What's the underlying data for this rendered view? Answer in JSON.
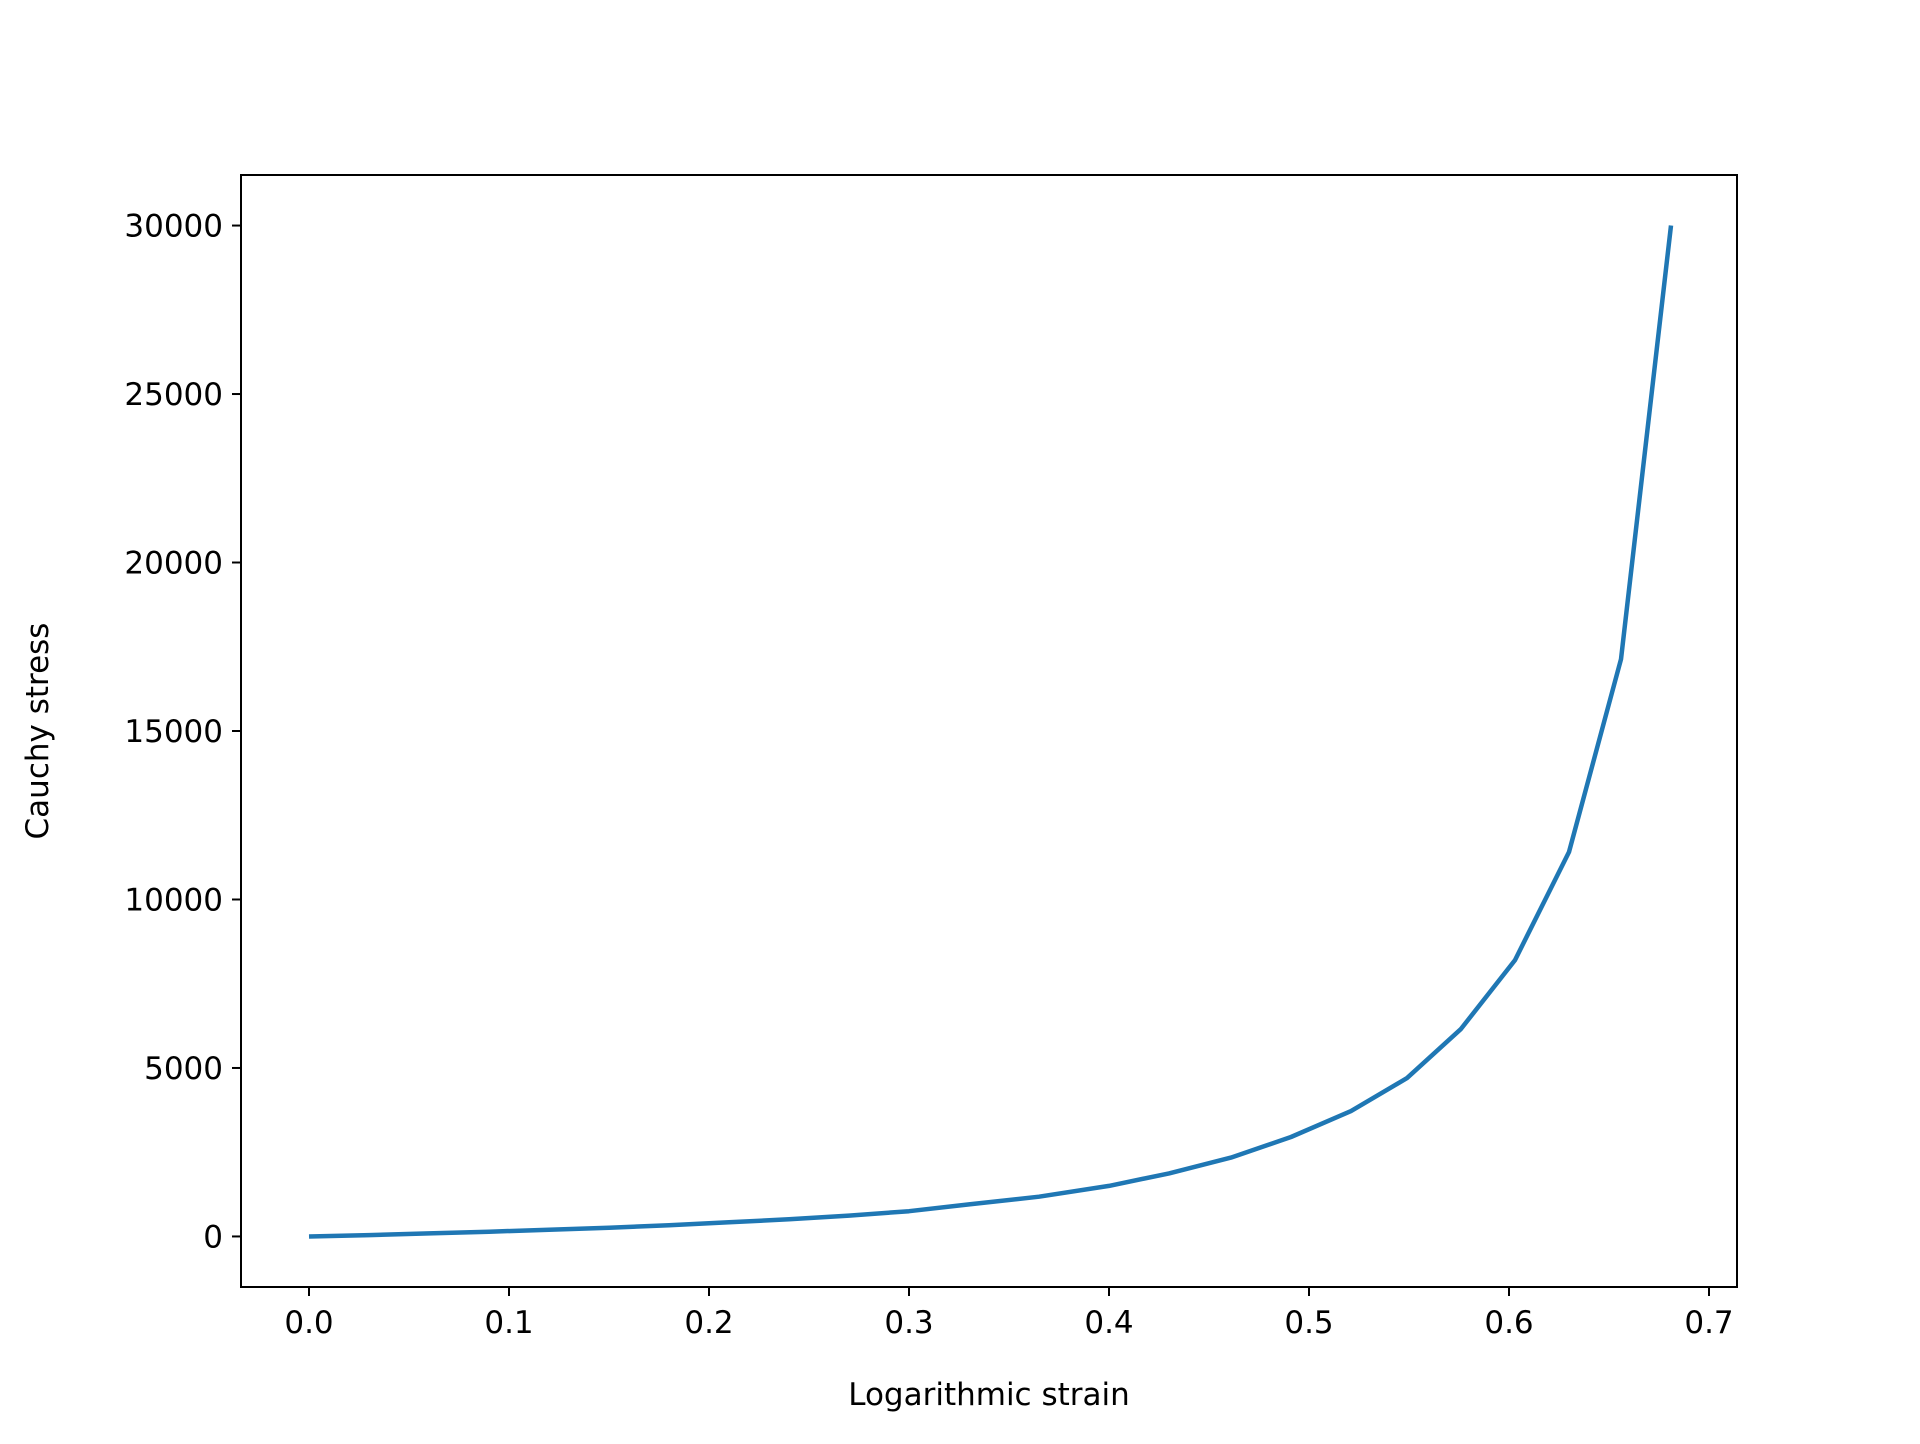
{
  "chart_data": {
    "type": "line",
    "title": "",
    "xlabel": "Logarithmic strain",
    "ylabel": "Cauchy stress",
    "xlim": [
      -0.034,
      0.714
    ],
    "ylim": [
      -1500,
      31500
    ],
    "xticks": [
      "0.0",
      "0.1",
      "0.2",
      "0.3",
      "0.4",
      "0.5",
      "0.6",
      "0.7"
    ],
    "xtick_values": [
      0,
      0.1,
      0.2,
      0.3,
      0.4,
      0.5,
      0.6,
      0.7
    ],
    "yticks": [
      "0",
      "5000",
      "10000",
      "15000",
      "20000",
      "25000",
      "30000"
    ],
    "ytick_values": [
      0,
      5000,
      10000,
      15000,
      20000,
      25000,
      30000
    ],
    "grid": false,
    "series": [
      {
        "color": "#1f77b4",
        "x": [
          0,
          0.03,
          0.06,
          0.09,
          0.12,
          0.15,
          0.18,
          0.21,
          0.24,
          0.27,
          0.3,
          0.33,
          0.365,
          0.4,
          0.43,
          0.461,
          0.491,
          0.521,
          0.549,
          0.576,
          0.603,
          0.63,
          0.656,
          0.681
        ],
        "y": [
          0,
          40,
          90,
          140,
          200,
          260,
          330,
          420,
          510,
          620,
          750,
          950,
          1180,
          1500,
          1870,
          2340,
          2950,
          3720,
          4700,
          6160,
          8200,
          11410,
          17130,
          30000
        ]
      }
    ]
  }
}
